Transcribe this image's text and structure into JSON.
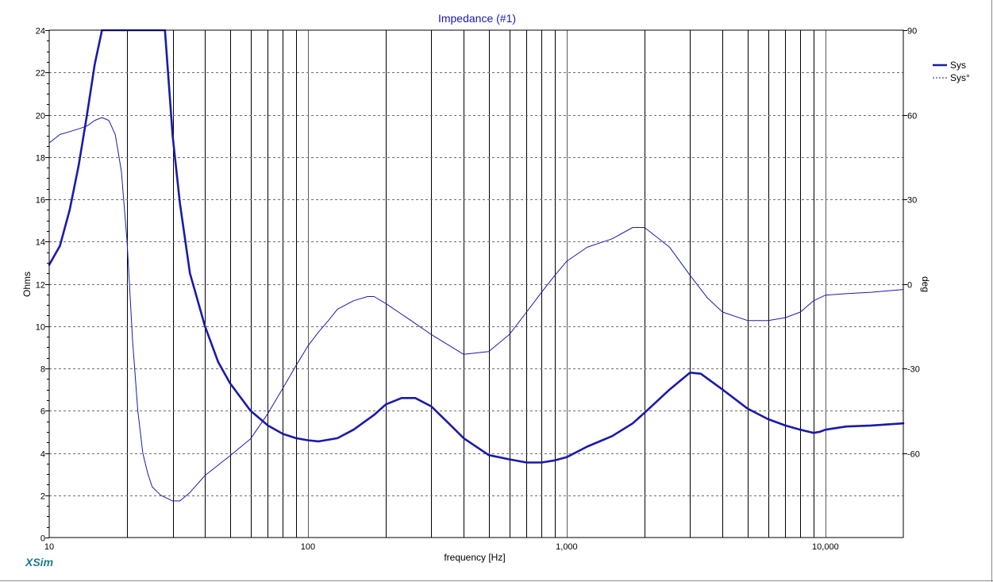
{
  "chart_data": {
    "type": "line",
    "title": "Impedance (#1)",
    "xlabel": "frequency [Hz]",
    "ylabel": "Ohms",
    "y2label": "deg",
    "x_scale": "log",
    "xlim": [
      10,
      20000
    ],
    "ylim": [
      0,
      24
    ],
    "y2lim": [
      -90,
      90
    ],
    "x_ticks": [
      {
        "value": 10,
        "label": "10"
      },
      {
        "value": 100,
        "label": "100"
      },
      {
        "value": 1000,
        "label": "1,000"
      },
      {
        "value": 10000,
        "label": "10,000"
      }
    ],
    "y_ticks": [
      0,
      2,
      4,
      6,
      8,
      10,
      12,
      14,
      16,
      18,
      20,
      22,
      24
    ],
    "y2_ticks": [
      -60,
      -30,
      0,
      30,
      60,
      90
    ],
    "grid": true,
    "legend_position": "top-right",
    "colors": {
      "series": "#1a1aaa",
      "title": "#1a1aaa",
      "brand": "#1a7a8c",
      "grid_major": "#000000",
      "grid_minor": "#5a5a5a"
    },
    "series": [
      {
        "name": "Sys",
        "axis": "left",
        "style": "thick",
        "x": [
          10,
          11,
          12,
          13,
          14,
          15,
          16,
          16.5,
          28,
          30,
          32,
          35,
          40,
          45,
          50,
          60,
          70,
          80,
          90,
          100,
          110,
          130,
          150,
          180,
          200,
          230,
          260,
          300,
          350,
          400,
          500,
          600,
          700,
          800,
          900,
          1000,
          1200,
          1500,
          1800,
          2000,
          2500,
          2800,
          3000,
          3300,
          4000,
          5000,
          6000,
          7000,
          8000,
          9000,
          9500,
          10000,
          12000,
          15000,
          20000
        ],
        "y": [
          12.9,
          13.8,
          15.5,
          17.6,
          20.0,
          22.4,
          24.0,
          24.0,
          24.0,
          19.0,
          15.8,
          12.5,
          10.0,
          8.3,
          7.3,
          6.0,
          5.3,
          4.9,
          4.7,
          4.6,
          4.55,
          4.7,
          5.1,
          5.8,
          6.3,
          6.6,
          6.6,
          6.2,
          5.4,
          4.7,
          3.9,
          3.7,
          3.55,
          3.55,
          3.65,
          3.8,
          4.3,
          4.8,
          5.4,
          5.9,
          7.0,
          7.5,
          7.8,
          7.75,
          7.0,
          6.1,
          5.6,
          5.3,
          5.1,
          4.95,
          5.0,
          5.1,
          5.25,
          5.3,
          5.4
        ]
      },
      {
        "name": "Sys°",
        "axis": "right",
        "style": "thin",
        "x": [
          10,
          11,
          12,
          13,
          14,
          15,
          16,
          17,
          18,
          19,
          20,
          21,
          22,
          23,
          24,
          25,
          27,
          30,
          32,
          35,
          40,
          50,
          60,
          70,
          80,
          90,
          100,
          110,
          120,
          130,
          150,
          170,
          180,
          200,
          250,
          300,
          400,
          500,
          600,
          700,
          800,
          900,
          1000,
          1200,
          1500,
          1800,
          2000,
          2500,
          3000,
          3500,
          4000,
          5000,
          6000,
          7000,
          8000,
          9000,
          10000,
          12000,
          15000,
          20000
        ],
        "y": [
          50,
          53,
          54,
          55,
          56,
          58,
          59,
          58,
          53,
          40,
          15,
          -20,
          -45,
          -60,
          -67,
          -72,
          -75,
          -77,
          -77,
          -74,
          -68,
          -61,
          -55,
          -46,
          -37,
          -29,
          -22,
          -17,
          -13,
          -9,
          -6,
          -4.5,
          -4.5,
          -7,
          -13,
          -18,
          -25,
          -24,
          -18,
          -10,
          -3,
          3,
          8,
          13,
          16,
          20,
          20,
          13,
          3,
          -5,
          -10,
          -13,
          -13,
          -12,
          -10,
          -6,
          -4,
          -3.5,
          -3,
          -2
        ]
      }
    ]
  }
}
